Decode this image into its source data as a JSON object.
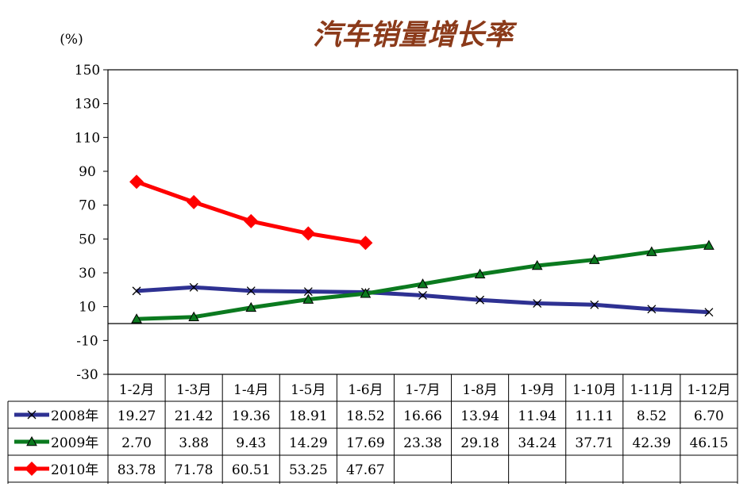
{
  "chart_data": {
    "type": "line",
    "title": "汽车销量增长率",
    "title_color": "#8B3A1A",
    "ylabel": "(%)",
    "ylim": [
      -30,
      150
    ],
    "yticks": [
      "150",
      "130",
      "110",
      "90",
      "70",
      "50",
      "30",
      "10",
      "-10",
      "-30"
    ],
    "categories": [
      "1-2月",
      "1-3月",
      "1-4月",
      "1-5月",
      "1-6月",
      "1-7月",
      "1-8月",
      "1-9月",
      "1-10月",
      "1-11月",
      "1-12月"
    ],
    "grid": false,
    "legend": "data-table-left",
    "series": [
      {
        "name": "2008年",
        "color": "#2E3192",
        "marker": "x",
        "values": [
          19.27,
          21.42,
          19.36,
          18.91,
          18.52,
          16.66,
          13.94,
          11.94,
          11.11,
          8.52,
          6.7
        ],
        "labels": [
          "19.27",
          "21.42",
          "19.36",
          "18.91",
          "18.52",
          "16.66",
          "13.94",
          "11.94",
          "11.11",
          "8.52",
          "6.70"
        ]
      },
      {
        "name": "2009年",
        "color": "#0B7A1F",
        "marker": "triangle",
        "values": [
          2.7,
          3.88,
          9.43,
          14.29,
          17.69,
          23.38,
          29.18,
          34.24,
          37.71,
          42.39,
          46.15
        ],
        "labels": [
          "2.70",
          "3.88",
          "9.43",
          "14.29",
          "17.69",
          "23.38",
          "29.18",
          "34.24",
          "37.71",
          "42.39",
          "46.15"
        ]
      },
      {
        "name": "2010年",
        "color": "#FF0000",
        "marker": "diamond",
        "values": [
          83.78,
          71.78,
          60.51,
          53.25,
          47.67,
          null,
          null,
          null,
          null,
          null,
          null
        ],
        "labels": [
          "83.78",
          "71.78",
          "60.51",
          "53.25",
          "47.67",
          "",
          "",
          "",
          "",
          "",
          ""
        ]
      }
    ]
  }
}
